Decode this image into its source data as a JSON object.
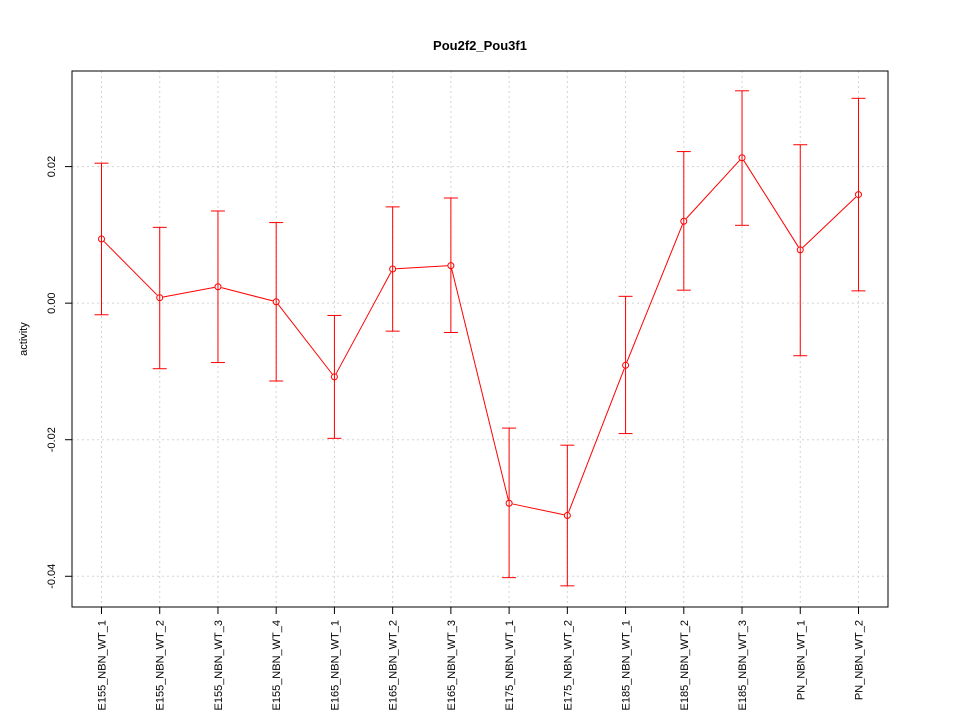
{
  "chart_data": {
    "type": "line",
    "title": "Pou2f2_Pou3f1",
    "xlabel": "",
    "ylabel": "activity",
    "categories": [
      "E155_NBN_WT_1",
      "E155_NBN_WT_2",
      "E155_NBN_WT_3",
      "E155_NBN_WT_4",
      "E165_NBN_WT_1",
      "E165_NBN_WT_2",
      "E165_NBN_WT_3",
      "E175_NBN_WT_1",
      "E175_NBN_WT_2",
      "E185_NBN_WT_1",
      "E185_NBN_WT_2",
      "E185_NBN_WT_3",
      "PN_NBN_WT_1",
      "PN_NBN_WT_2"
    ],
    "series": [
      {
        "values": [
          0.0094,
          0.0008,
          0.0024,
          0.0002,
          -0.0108,
          0.005,
          0.0055,
          -0.0293,
          -0.0311,
          -0.0091,
          0.012,
          0.0213,
          0.0078,
          0.0159
        ],
        "upper": [
          0.0205,
          0.0111,
          0.0135,
          0.0118,
          -0.0018,
          0.0141,
          0.0154,
          -0.0183,
          -0.0208,
          0.001,
          0.0222,
          0.0311,
          0.0232,
          0.03
        ],
        "lower": [
          -0.0017,
          -0.0096,
          -0.0087,
          -0.0114,
          -0.0198,
          -0.0041,
          -0.0043,
          -0.0402,
          -0.0414,
          -0.0191,
          0.0019,
          0.0114,
          -0.0077,
          0.0018
        ],
        "color": "#ff0000"
      }
    ],
    "yticks": [
      -0.04,
      -0.02,
      0.0,
      0.02
    ],
    "ytick_labels": [
      "-0.04",
      "-0.02",
      "0.00",
      "0.02"
    ],
    "ylim": [
      -0.0445,
      0.034
    ],
    "grid": true,
    "grid_color": "#d3d3d3",
    "legend": "none"
  }
}
